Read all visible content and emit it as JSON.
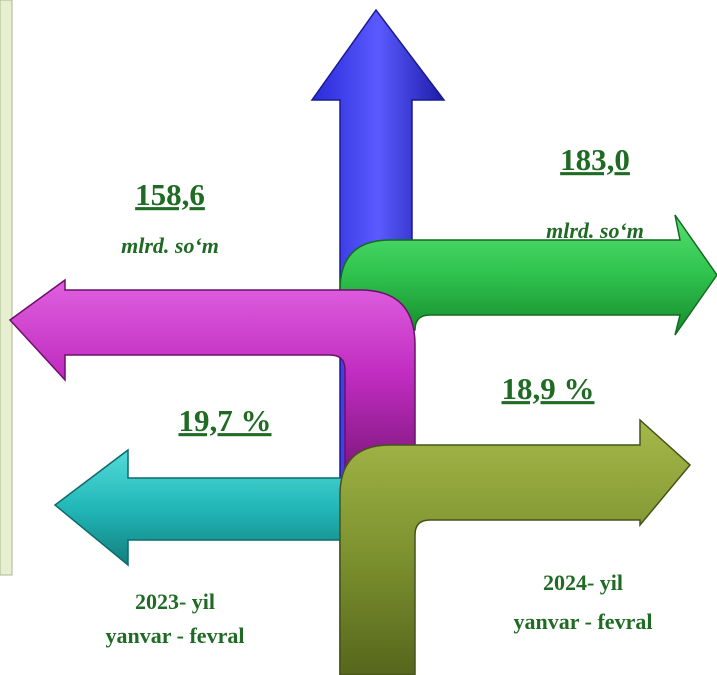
{
  "left": {
    "amount": "158,6",
    "unit": "mlrd. so‘m",
    "share": "19,7 %",
    "period": [
      "2023- yil",
      "yanvar - fevral"
    ]
  },
  "right": {
    "amount": "183,0",
    "unit": "mlrd. so‘m",
    "share": "18,9 %",
    "period": [
      "2024- yil",
      "yanvar - fevral"
    ]
  }
}
